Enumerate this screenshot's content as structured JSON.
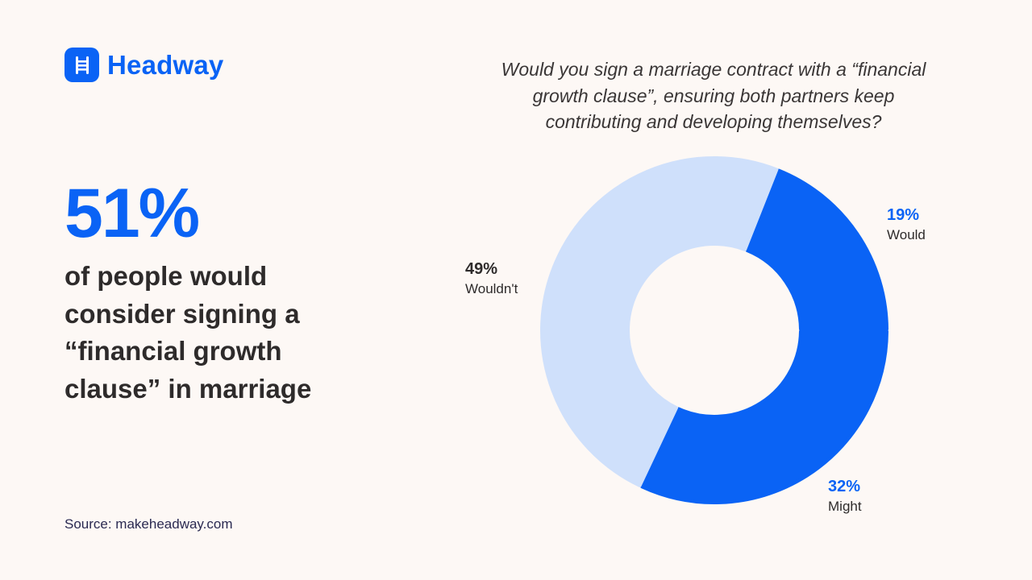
{
  "brand": {
    "name": "Headway",
    "icon": "ladder-icon",
    "color": "#0a63f5"
  },
  "headline": {
    "stat": "51%",
    "lines": [
      "of people would",
      "consider signing a",
      "“financial growth",
      "clause” in marriage"
    ]
  },
  "question": {
    "lines": [
      "Would you sign a marriage contract with a “financial",
      "growth clause”, ensuring both partners keep",
      "contributing and developing themselves?"
    ]
  },
  "source": "Source: makeheadway.com",
  "colors": {
    "background": "#fdf8f5",
    "primary": "#0a63f5",
    "light": "#cfe0fb",
    "text": "#2e2b2b"
  },
  "chart_data": {
    "type": "pie",
    "variant": "donut",
    "title": "Would you sign a marriage contract with a “financial growth clause”, ensuring both partners keep contributing and developing themselves?",
    "categories": [
      "Would",
      "Might",
      "Wouldn't"
    ],
    "values": [
      19,
      32,
      49
    ],
    "unit": "%",
    "colors": [
      "#0a63f5",
      "#0a63f5",
      "#cfe0fb"
    ],
    "start_angle_deg": 21.6,
    "direction": "clockwise",
    "legend": "none (direct labels)",
    "labels": {
      "would": {
        "pct": "19%",
        "name": "Would"
      },
      "might": {
        "pct": "32%",
        "name": "Might"
      },
      "wouldnt": {
        "pct": "49%",
        "name": "Wouldn't"
      }
    }
  }
}
